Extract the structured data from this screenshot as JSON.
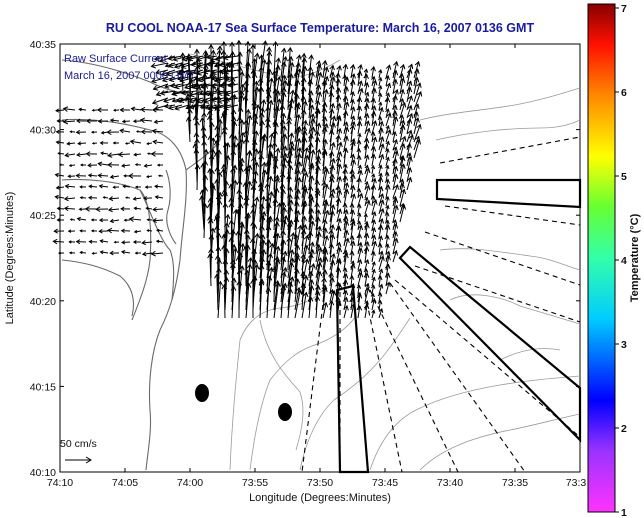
{
  "chart_data": {
    "type": "vector-field-map",
    "title": "RU COOL  NOAA-17  Sea Surface Temperature:  March 16, 2007 0136 GMT",
    "annotation": [
      "Raw Surface Current",
      "March 16, 2007 0000 GMT"
    ],
    "xlabel": "Longitude (Degrees:Minutes)",
    "ylabel": "Latitude (Degrees:Minutes)",
    "x_ticks": [
      "74:10",
      "74:05",
      "74:00",
      "73:55",
      "73:50",
      "73:45",
      "73:40",
      "73:35",
      "73:3"
    ],
    "y_ticks": [
      "40:10",
      "40:15",
      "40:20",
      "40:25",
      "40:30",
      "40:35"
    ],
    "xlim_minutes_west": [
      4450,
      4410
    ],
    "ylim_minutes_north": [
      2410,
      2435
    ],
    "scale_arrow_label": "50 cm/s",
    "colorbar": {
      "label": "Temperature (°C)",
      "ticks": [
        "1",
        "2",
        "3",
        "4",
        "5",
        "6",
        "7"
      ],
      "range": [
        1,
        7
      ]
    },
    "colors": {
      "title": "#1a1a9c",
      "annotation": "#1a1a8c",
      "arrows": "#000000",
      "coast": "#777777",
      "contours": "#999999"
    }
  }
}
